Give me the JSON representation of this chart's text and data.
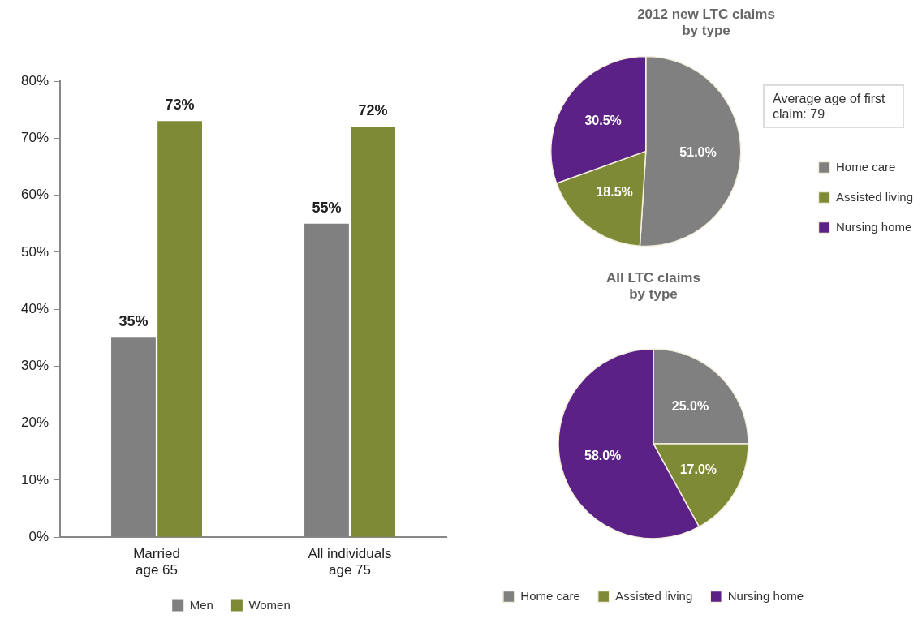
{
  "chart_data": [
    {
      "type": "bar",
      "categories": [
        "Married\nage 65",
        "All individuals\nage 75"
      ],
      "series": [
        {
          "name": "Men",
          "color": "#808080",
          "values": [
            35,
            55
          ],
          "value_labels": [
            "35%",
            "55%"
          ]
        },
        {
          "name": "Women",
          "color": "#7f8a37",
          "values": [
            73,
            72
          ],
          "value_labels": [
            "73%",
            "72%"
          ]
        }
      ],
      "ylim": [
        0,
        80
      ],
      "yticks": [
        {
          "value": 0,
          "label": "0%"
        },
        {
          "value": 10,
          "label": "10%"
        },
        {
          "value": 20,
          "label": "20%"
        },
        {
          "value": 30,
          "label": "30%"
        },
        {
          "value": 40,
          "label": "40%"
        },
        {
          "value": 50,
          "label": "50%"
        },
        {
          "value": 60,
          "label": "60%"
        },
        {
          "value": 70,
          "label": "70%"
        },
        {
          "value": 80,
          "label": "80%"
        }
      ],
      "grid": false,
      "legend": "bottom"
    },
    {
      "type": "pie",
      "title": "2012 new LTC claims\nby type",
      "categories": [
        "Home care",
        "Assisted living",
        "Nursing home"
      ],
      "values": [
        51.0,
        18.5,
        30.5
      ],
      "value_labels": [
        "51.0%",
        "18.5%",
        "30.5%"
      ],
      "colors": [
        "#808080",
        "#7f8a37",
        "#5b2186"
      ],
      "annotations": [
        "Average age of first claim: 79"
      ],
      "legend": "right"
    },
    {
      "type": "pie",
      "title": "All LTC claims\nby type",
      "categories": [
        "Home care",
        "Assisted living",
        "Nursing home"
      ],
      "values": [
        25.0,
        17.0,
        58.0
      ],
      "value_labels": [
        "25.0%",
        "17.0%",
        "58.0%"
      ],
      "colors": [
        "#808080",
        "#7f8a37",
        "#5b2186"
      ],
      "legend": "bottom"
    }
  ]
}
